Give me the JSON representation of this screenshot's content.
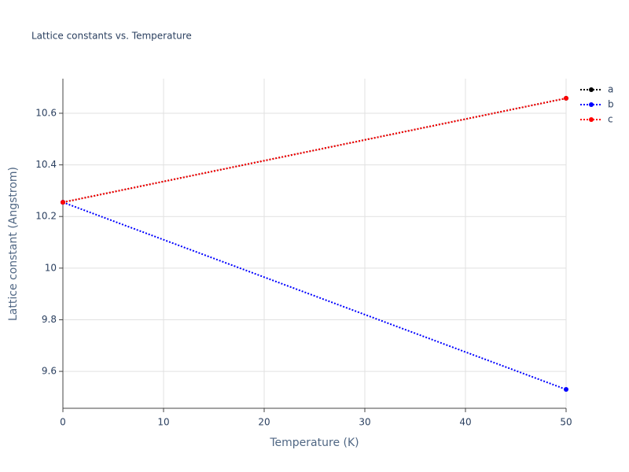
{
  "chart_data": {
    "type": "line",
    "title": "Lattice constants vs. Temperature",
    "x_label": "Temperature (K)",
    "y_label": "Lattice constant (Angstrom)",
    "x": [
      0,
      50
    ],
    "series": [
      {
        "name": "a",
        "color": "#000000",
        "values": [
          10.255,
          10.658
        ]
      },
      {
        "name": "b",
        "color": "#0000ff",
        "values": [
          10.255,
          9.53
        ]
      },
      {
        "name": "c",
        "color": "#ff0000",
        "values": [
          10.255,
          10.658
        ]
      }
    ],
    "xlim": [
      0,
      50
    ],
    "xticks": [
      0,
      10,
      20,
      30,
      40,
      50
    ],
    "ylim": [
      9.457,
      10.734
    ],
    "yticks": [
      9.6,
      9.8,
      10,
      10.2,
      10.4,
      10.6
    ],
    "grid": true,
    "line_dash": "dot",
    "markers": true,
    "legend": "right"
  }
}
